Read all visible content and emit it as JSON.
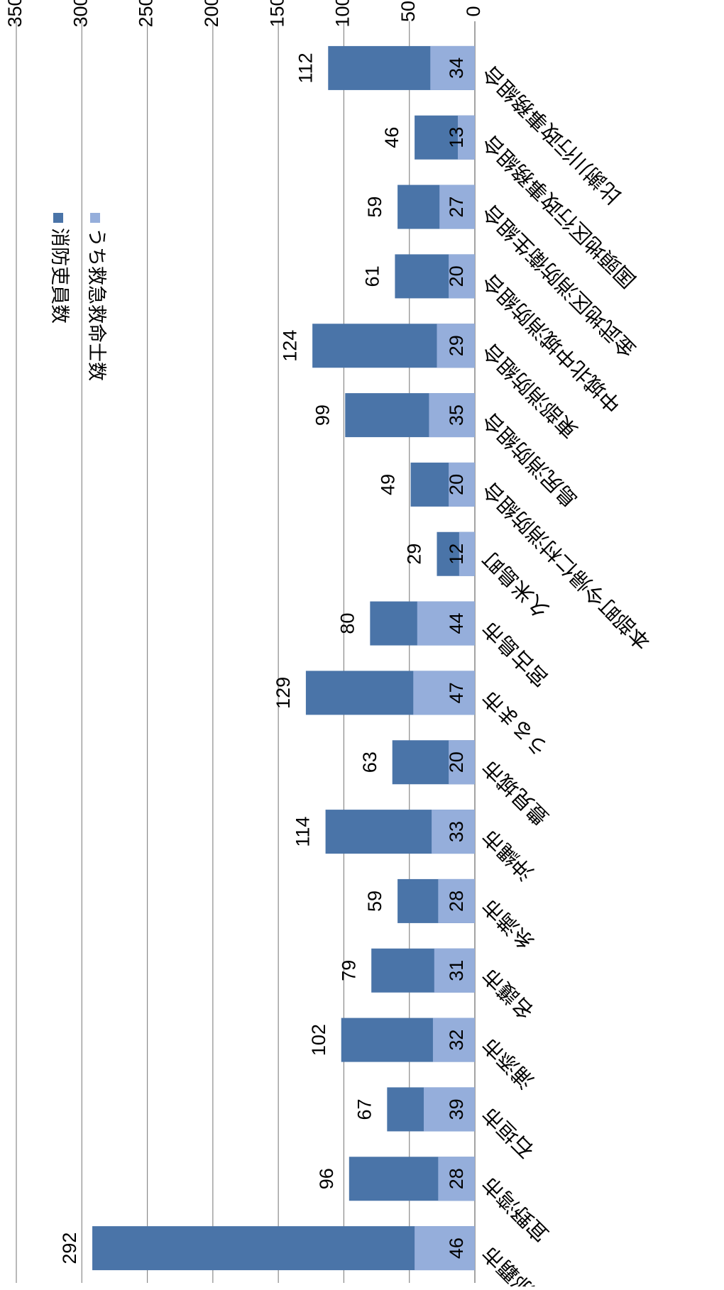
{
  "chart_data": {
    "type": "bar",
    "stacking": "overlapping",
    "orientation": "rotated-180",
    "categories": [
      "那覇市",
      "宜野湾市",
      "石垣市",
      "浦添市",
      "名護市",
      "糸満市",
      "沖縄市",
      "豊見城市",
      "うるま市",
      "宮古島市",
      "久米島町",
      "本部町今帰仁村消防組合",
      "島尻消防組合",
      "東部消防組合",
      "中城北中城消防組合",
      "金武地区消防衛生組合",
      "国頭地区行政事務組合",
      "比謝川行政事務組合"
    ],
    "series": [
      {
        "name": "消防吏員数",
        "color": "#4a74a8",
        "values": [
          292,
          96,
          67,
          102,
          79,
          59,
          114,
          63,
          129,
          80,
          29,
          49,
          99,
          124,
          61,
          59,
          46,
          112
        ]
      },
      {
        "name": "うち救急救命士数",
        "color": "#95aedb",
        "values": [
          46,
          28,
          39,
          32,
          31,
          28,
          33,
          20,
          47,
          44,
          12,
          20,
          35,
          29,
          20,
          27,
          13,
          34
        ]
      }
    ],
    "ylim": [
      0,
      350
    ],
    "yticks": [
      "0",
      "50",
      "100",
      "150",
      "200",
      "250",
      "300",
      "350"
    ],
    "grid": true,
    "legend": "top-right"
  }
}
